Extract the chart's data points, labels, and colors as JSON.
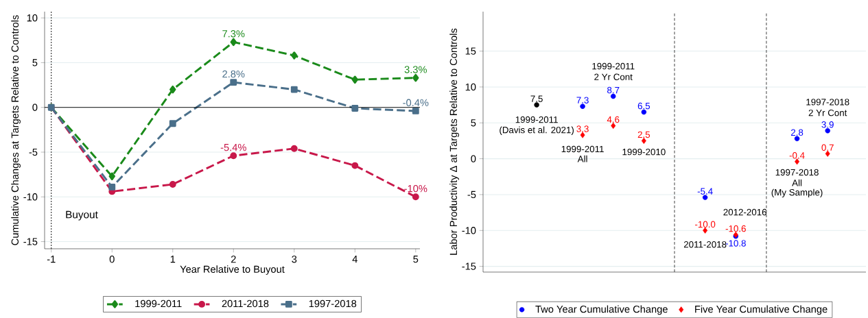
{
  "chart_data": [
    {
      "type": "line",
      "xlabel": "Year Relative to Buyout",
      "ylabel": "Cumulative Changes at Targets Relative to Controls",
      "x": [
        -1,
        0,
        1,
        2,
        3,
        4,
        5
      ],
      "xlim": [
        -1.11,
        5.07
      ],
      "xticks": [
        -1,
        0,
        1,
        2,
        3,
        4,
        5
      ],
      "ylim": [
        -15.8,
        10.7
      ],
      "yticks": [
        -15,
        -10,
        -5,
        0,
        5,
        10
      ],
      "grid": "y",
      "legend": "bottom",
      "line_style": "dashed",
      "series": [
        {
          "name": "1999-2011",
          "color": "#1a8a1a",
          "marker": "diamond",
          "values": [
            0,
            -7.7,
            2.0,
            7.3,
            5.8,
            3.1,
            3.3
          ],
          "value_labels": [
            null,
            null,
            null,
            "7.3%",
            null,
            null,
            "3.3%"
          ]
        },
        {
          "name": "2011-2018",
          "color": "#c8184a",
          "marker": "circle",
          "values": [
            0,
            -9.4,
            -8.6,
            -5.4,
            -4.6,
            -6.5,
            -10.0
          ],
          "value_labels": [
            null,
            null,
            null,
            "-5.4%",
            null,
            null,
            "-10%"
          ]
        },
        {
          "name": "1997-2018",
          "color": "#4a6f8a",
          "marker": "square",
          "values": [
            0,
            -8.9,
            -1.8,
            2.8,
            2.0,
            -0.1,
            -0.4
          ],
          "value_labels": [
            null,
            null,
            null,
            "2.8%",
            null,
            null,
            "-0.4%"
          ]
        }
      ],
      "ref_lines": [
        {
          "axis": "x",
          "value": -1,
          "line_style": "dotted",
          "color": "#000000"
        },
        {
          "axis": "y",
          "value": 0,
          "line_style": "solid",
          "color": "#000000"
        }
      ],
      "annotations": [
        "Buyout"
      ]
    },
    {
      "type": "scatter",
      "ylabel": "Labor Productivity Δ at Targets Relative to Controls",
      "categories": [
        null,
        null,
        null,
        null,
        null,
        null,
        null,
        null,
        null,
        null,
        null,
        null,
        null,
        null,
        null,
        null,
        null,
        null,
        null,
        null,
        null,
        null,
        null,
        null,
        null
      ],
      "ylim": [
        -15.8,
        20.5
      ],
      "yticks": [
        -15,
        -10,
        -5,
        0,
        5,
        10,
        15
      ],
      "grid": "y",
      "legend": "bottom",
      "tick_labels": "y",
      "series": [
        {
          "color": "#000000",
          "marker": "circle",
          "values": [
            null,
            null,
            null,
            7.5,
            null,
            null,
            null,
            null,
            null,
            null,
            null,
            null,
            null,
            null,
            null,
            null,
            null,
            null,
            null,
            null,
            null,
            null,
            null,
            null,
            null
          ],
          "value_labels": [
            null,
            null,
            null,
            "7.5",
            null,
            null,
            null,
            null,
            null,
            null,
            null,
            null,
            null,
            null,
            null,
            null,
            null,
            null,
            null,
            null,
            null,
            null,
            null,
            null,
            null
          ]
        },
        {
          "name": "Two Year Cumulative Change",
          "color": "#0000ff",
          "marker": "circle",
          "values": [
            null,
            null,
            null,
            null,
            null,
            null,
            7.3,
            null,
            8.7,
            null,
            6.5,
            null,
            null,
            null,
            -5.4,
            null,
            -10.8,
            null,
            null,
            null,
            2.8,
            null,
            3.9,
            null,
            null
          ],
          "value_labels": [
            null,
            null,
            null,
            null,
            null,
            null,
            "7.3",
            null,
            "8.7",
            null,
            "6.5",
            null,
            null,
            null,
            "-5.4",
            null,
            "-10.8",
            null,
            null,
            null,
            "2.8",
            null,
            "3.9",
            null,
            null
          ]
        },
        {
          "name": "Five Year Cumulative Change",
          "color": "#ff0000",
          "marker": "diamond",
          "values": [
            null,
            null,
            null,
            null,
            null,
            null,
            3.3,
            null,
            4.6,
            null,
            2.5,
            null,
            null,
            null,
            -10.0,
            null,
            -10.6,
            null,
            null,
            null,
            -0.4,
            null,
            0.7,
            null,
            null
          ],
          "value_labels": [
            null,
            null,
            null,
            null,
            null,
            null,
            "3.3",
            null,
            "4.6",
            null,
            "2.5",
            null,
            null,
            null,
            "-10.0",
            null,
            "-10.6",
            null,
            null,
            null,
            "-0.4",
            null,
            "0.7",
            null,
            null
          ]
        }
      ],
      "annotations": [
        "1999-2011",
        "(Davis et al. 2021)",
        "1999-2011",
        "All",
        "1999-2011",
        "2 Yr Cont",
        "1999-2010",
        "1997-2018",
        "2 Yr Cont",
        "1997-2018",
        "All",
        "(My Sample)",
        "2012-2016",
        "2011-2018"
      ]
    }
  ]
}
